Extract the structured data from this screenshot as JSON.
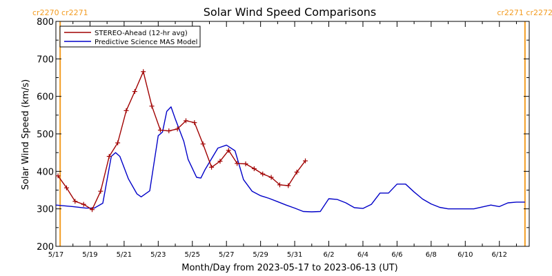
{
  "chart_data": {
    "type": "line",
    "title": "Solar Wind Speed Comparisons",
    "xlabel": "Month/Day from 2023-05-17 to 2023-06-13 (UT)",
    "ylabel": "Solar Wind Speed (km/s)",
    "ylim": [
      200,
      800
    ],
    "yticks": [
      200,
      300,
      400,
      500,
      600,
      700,
      800
    ],
    "xlim": [
      "2023-05-17",
      "2023-06-13T18:00"
    ],
    "xtick_labels": [
      "5/17",
      "5/19",
      "5/21",
      "5/23",
      "5/25",
      "5/27",
      "5/29",
      "5/31",
      "6/2",
      "6/4",
      "6/6",
      "6/8",
      "6/10",
      "6/12"
    ],
    "grid": false,
    "legend_position": "top-left",
    "carrington_markers": [
      {
        "date": "2023-05-17T06:00",
        "label": "cr2270 cr2271",
        "side": "left"
      },
      {
        "date": "2023-06-13T12:00",
        "label": "cr2271 cr2272",
        "side": "right"
      }
    ],
    "marker_color": "#f39c21",
    "series": [
      {
        "name": "STEREO-Ahead (12-hr avg)",
        "color": "#a00000",
        "marker": "plus",
        "x": [
          "2023-05-17T03:00",
          "2023-05-17T15:00",
          "2023-05-18T03:00",
          "2023-05-18T15:00",
          "2023-05-19T03:00",
          "2023-05-19T15:00",
          "2023-05-20T03:00",
          "2023-05-20T15:00",
          "2023-05-21T03:00",
          "2023-05-21T15:00",
          "2023-05-22T03:00",
          "2023-05-22T15:00",
          "2023-05-23T03:00",
          "2023-05-23T15:00",
          "2023-05-24T03:00",
          "2023-05-24T15:00",
          "2023-05-25T03:00",
          "2023-05-25T15:00",
          "2023-05-26T03:00",
          "2023-05-26T15:00",
          "2023-05-27T03:00",
          "2023-05-27T15:00",
          "2023-05-28T03:00",
          "2023-05-28T15:00",
          "2023-05-29T03:00",
          "2023-05-29T15:00",
          "2023-05-30T03:00",
          "2023-05-30T15:00",
          "2023-05-31T03:00",
          "2023-05-31T15:00"
        ],
        "y": [
          388,
          356,
          320,
          312,
          298,
          347,
          440,
          476,
          562,
          613,
          666,
          574,
          510,
          508,
          513,
          535,
          530,
          473,
          411,
          427,
          456,
          421,
          420,
          407,
          393,
          384,
          364,
          362,
          398,
          428
        ]
      },
      {
        "name": "Predictive Science MAS Model",
        "color": "#0000c8",
        "x": [
          "2023-05-17T00:00",
          "2023-05-18T00:00",
          "2023-05-18T18:00",
          "2023-05-19T06:00",
          "2023-05-19T18:00",
          "2023-05-20T06:00",
          "2023-05-20T12:00",
          "2023-05-20T18:00",
          "2023-05-21T06:00",
          "2023-05-21T18:00",
          "2023-05-22T00:00",
          "2023-05-22T12:00",
          "2023-05-23T00:00",
          "2023-05-23T06:00",
          "2023-05-23T12:00",
          "2023-05-23T18:00",
          "2023-05-24T00:00",
          "2023-05-24T12:00",
          "2023-05-24T18:00",
          "2023-05-25T06:00",
          "2023-05-25T12:00",
          "2023-05-25T18:00",
          "2023-05-26T12:00",
          "2023-05-27T00:00",
          "2023-05-27T12:00",
          "2023-05-28T00:00",
          "2023-05-28T12:00",
          "2023-05-29T00:00",
          "2023-05-29T12:00",
          "2023-05-30T00:00",
          "2023-05-30T12:00",
          "2023-05-31T00:00",
          "2023-05-31T12:00",
          "2023-06-01T00:00",
          "2023-06-01T12:00",
          "2023-06-02T00:00",
          "2023-06-02T12:00",
          "2023-06-03T00:00",
          "2023-06-03T12:00",
          "2023-06-04T00:00",
          "2023-06-04T12:00",
          "2023-06-05T00:00",
          "2023-06-05T12:00",
          "2023-06-06T00:00",
          "2023-06-06T12:00",
          "2023-06-07T00:00",
          "2023-06-07T12:00",
          "2023-06-08T00:00",
          "2023-06-08T12:00",
          "2023-06-09T00:00",
          "2023-06-09T12:00",
          "2023-06-10T00:00",
          "2023-06-10T12:00",
          "2023-06-11T00:00",
          "2023-06-11T12:00",
          "2023-06-12T00:00",
          "2023-06-12T12:00",
          "2023-06-13T00:00",
          "2023-06-13T12:00"
        ],
        "y": [
          310,
          306,
          302,
          302,
          315,
          440,
          450,
          440,
          380,
          340,
          332,
          348,
          495,
          505,
          560,
          572,
          540,
          480,
          432,
          384,
          382,
          405,
          462,
          470,
          455,
          378,
          347,
          335,
          328,
          319,
          310,
          302,
          293,
          292,
          293,
          327,
          325,
          316,
          303,
          301,
          312,
          342,
          342,
          366,
          366,
          345,
          326,
          313,
          304,
          300,
          300,
          300,
          300,
          305,
          310,
          306,
          316,
          318,
          318
        ]
      }
    ]
  }
}
